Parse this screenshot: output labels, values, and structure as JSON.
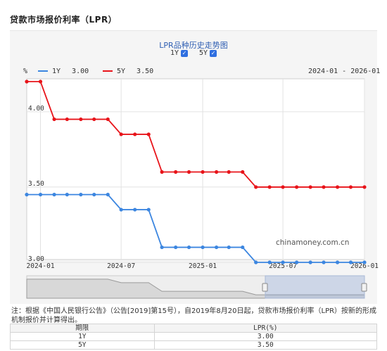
{
  "page": {
    "title": "贷款市场报价利率（LPR）"
  },
  "chart_controls": {
    "title": "LPR品种历史走势图",
    "toggles": [
      {
        "label": "1Y",
        "checked": true
      },
      {
        "label": "5Y",
        "checked": true
      }
    ],
    "legend": [
      {
        "name": "1Y",
        "value": "3.00",
        "color": "#3c86e0"
      },
      {
        "name": "5Y",
        "value": "3.50",
        "color": "#e8141a"
      }
    ],
    "unit": "%",
    "date_range": "2024-01 - 2026-01",
    "watermark": "chinamoney.com.cn"
  },
  "chart_data": {
    "type": "line",
    "ylabel": "%",
    "xlim": [
      "2023-12-01",
      "2026-01-01"
    ],
    "ylim": [
      3.0,
      4.2
    ],
    "y_ticks": [
      "4.00",
      "3.50",
      "3.00"
    ],
    "x_tick_labels": [
      "2024-01",
      "2024-07",
      "2025-01",
      "2025-07",
      "2026-01"
    ],
    "x_tick_dates": [
      "2024-01-01",
      "2024-07-01",
      "2025-01-01",
      "2025-07-01",
      "2026-01-01"
    ],
    "grid": true,
    "x": [
      "2023-12",
      "2024-01",
      "2024-02",
      "2024-03",
      "2024-04",
      "2024-05",
      "2024-06",
      "2024-07",
      "2024-08",
      "2024-09",
      "2024-10",
      "2024-11",
      "2024-12",
      "2025-01",
      "2025-02",
      "2025-03",
      "2025-04",
      "2025-05",
      "2025-06",
      "2025-07",
      "2025-08",
      "2025-09",
      "2025-10",
      "2025-11",
      "2025-12",
      "2026-01"
    ],
    "series": [
      {
        "name": "1Y",
        "color": "#3c86e0",
        "values": [
          3.45,
          3.45,
          3.45,
          3.45,
          3.45,
          3.45,
          3.45,
          3.35,
          3.35,
          3.35,
          3.1,
          3.1,
          3.1,
          3.1,
          3.1,
          3.1,
          3.1,
          3.0,
          3.0,
          3.0,
          3.0,
          3.0,
          3.0,
          3.0,
          3.0,
          3.0
        ]
      },
      {
        "name": "5Y",
        "color": "#e8141a",
        "values": [
          4.2,
          4.2,
          3.95,
          3.95,
          3.95,
          3.95,
          3.95,
          3.85,
          3.85,
          3.85,
          3.6,
          3.6,
          3.6,
          3.6,
          3.6,
          3.6,
          3.6,
          3.5,
          3.5,
          3.5,
          3.5,
          3.5,
          3.5,
          3.5,
          3.5,
          3.5
        ]
      }
    ]
  },
  "note": "注：根据《中国人民银行公告》（公告[2019]第15号），自2019年8月20日起，贷款市场报价利率（LPR）按新的形成机制报价并计算得出。",
  "table": {
    "headers": [
      "期限",
      "LPR(%)"
    ],
    "rows": [
      [
        "1Y",
        "3.00"
      ],
      [
        "5Y",
        "3.50"
      ]
    ]
  }
}
